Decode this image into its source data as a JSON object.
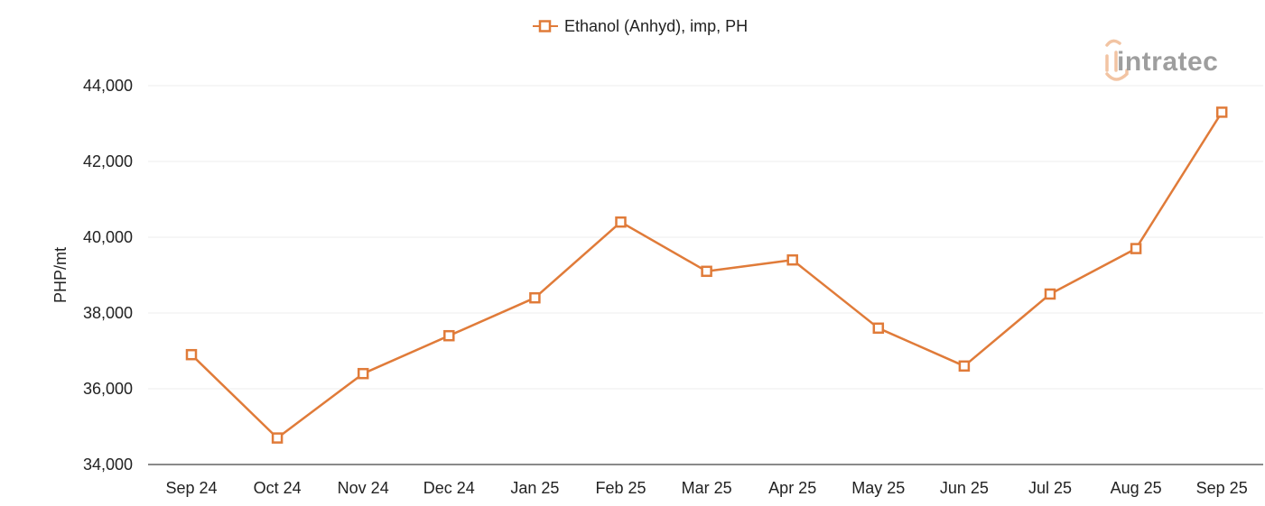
{
  "brand": {
    "logo_text": "intratec"
  },
  "chart_data": {
    "type": "line",
    "title": "",
    "xlabel": "",
    "ylabel": "PHP/mt",
    "ylim": [
      34000,
      44000
    ],
    "yticks": [
      34000,
      36000,
      38000,
      40000,
      42000,
      44000
    ],
    "ytick_labels": [
      "34,000",
      "36,000",
      "38,000",
      "40,000",
      "42,000",
      "44,000"
    ],
    "categories": [
      "Sep 24",
      "Oct 24",
      "Nov 24",
      "Dec 24",
      "Jan 25",
      "Feb 25",
      "Mar 25",
      "Apr 25",
      "May 25",
      "Jun 25",
      "Jul 25",
      "Aug 25",
      "Sep 25"
    ],
    "series": [
      {
        "name": "Ethanol (Anhyd), imp, PH",
        "color": "#e07b39",
        "marker": "hollow-square",
        "values": [
          36900,
          34700,
          36400,
          37400,
          38400,
          40400,
          39100,
          39400,
          37600,
          36600,
          38500,
          39700,
          43300
        ]
      }
    ],
    "grid": true,
    "legend_position": "top-center"
  }
}
